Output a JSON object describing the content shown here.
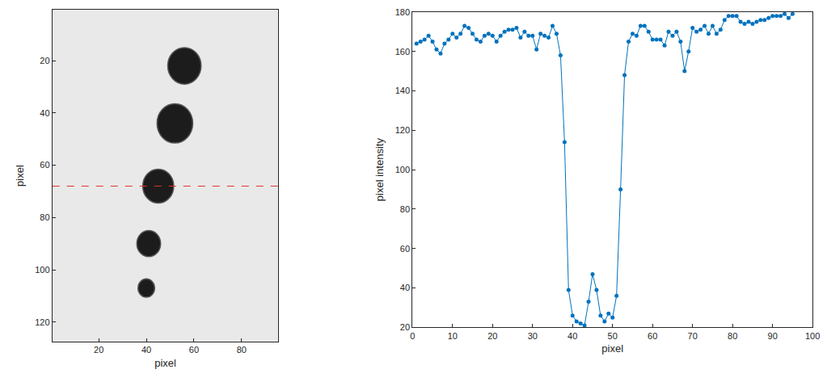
{
  "chart_data": [
    {
      "type": "image",
      "xlabel": "pixel",
      "ylabel": "pixel",
      "xlim": [
        0.5,
        95.5
      ],
      "ylim": [
        127.5,
        0.5
      ],
      "xticks": [
        20,
        40,
        60,
        80
      ],
      "yticks": [
        20,
        40,
        60,
        80,
        100,
        120
      ],
      "grid": false,
      "color": "#1c1c1c",
      "spots": {
        "x": [
          56,
          52,
          45,
          41,
          40
        ],
        "y": [
          22,
          44,
          68,
          90,
          107
        ],
        "r": [
          7,
          7.5,
          6.5,
          5,
          3.5
        ]
      },
      "hline": {
        "y": 68,
        "color": "#e0352b",
        "line_style": "dashed"
      }
    },
    {
      "type": "line",
      "xlabel": "pixel",
      "ylabel": "pixel intensity",
      "xlim": [
        0,
        100
      ],
      "ylim": [
        20,
        180
      ],
      "xticks": [
        0,
        10,
        20,
        30,
        40,
        50,
        60,
        70,
        80,
        90,
        100
      ],
      "yticks": [
        20,
        40,
        60,
        80,
        100,
        120,
        140,
        160,
        180
      ],
      "grid": false,
      "color": "#0072bd",
      "marker": "circle",
      "line_style": "solid",
      "x": [
        1,
        2,
        3,
        4,
        5,
        6,
        7,
        8,
        9,
        10,
        11,
        12,
        13,
        14,
        15,
        16,
        17,
        18,
        19,
        20,
        21,
        22,
        23,
        24,
        25,
        26,
        27,
        28,
        29,
        30,
        31,
        32,
        33,
        34,
        35,
        36,
        37,
        38,
        39,
        40,
        41,
        42,
        43,
        44,
        45,
        46,
        47,
        48,
        49,
        50,
        51,
        52,
        53,
        54,
        55,
        56,
        57,
        58,
        59,
        60,
        61,
        62,
        63,
        64,
        65,
        66,
        67,
        68,
        69,
        70,
        71,
        72,
        73,
        74,
        75,
        76,
        77,
        78,
        79,
        80,
        81,
        82,
        83,
        84,
        85,
        86,
        87,
        88,
        89,
        90,
        91,
        92,
        93,
        94,
        95
      ],
      "values": [
        164,
        165,
        166,
        168,
        165,
        161,
        159,
        164,
        166,
        169,
        167,
        169,
        173,
        172,
        169,
        166,
        165,
        168,
        169,
        168,
        165,
        168,
        170,
        171,
        171,
        172,
        167,
        170,
        168,
        168,
        161,
        169,
        168,
        167,
        173,
        169,
        158,
        114,
        39,
        26,
        23,
        22,
        21,
        33,
        47,
        39,
        26,
        23,
        27,
        25,
        36,
        90,
        148,
        165,
        169,
        168,
        173,
        173,
        170,
        166,
        166,
        166,
        163,
        170,
        168,
        170,
        165,
        150,
        160,
        172,
        170,
        171,
        173,
        169,
        173,
        169,
        171,
        176,
        178,
        178,
        178,
        175,
        174,
        175,
        174,
        175,
        176,
        176,
        177,
        178,
        178,
        178,
        179,
        177,
        179
      ]
    }
  ]
}
